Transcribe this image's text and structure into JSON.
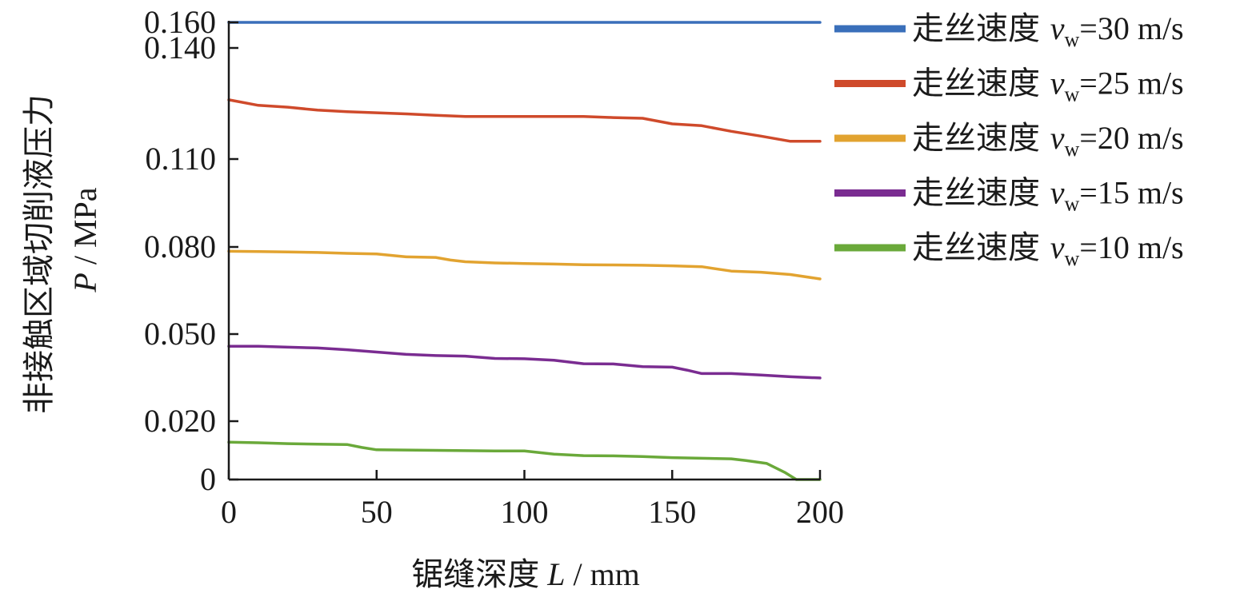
{
  "chart_data": {
    "type": "line",
    "xlabel": {
      "cn": "锯缝深度",
      "var": "L",
      "unit": " / mm"
    },
    "ylabel": {
      "cn": "非接触区域切削液压力",
      "var": "P",
      "unit": " / MPa"
    },
    "xlim": [
      0,
      200
    ],
    "ylim": [
      0,
      0.16
    ],
    "x_ticks": [
      0,
      50,
      100,
      150,
      200
    ],
    "x_tick_labels": [
      "0",
      "50",
      "100",
      "150",
      "200"
    ],
    "y_ticks": [
      0,
      0.02,
      0.05,
      0.08,
      0.11,
      0.14,
      0.16
    ],
    "y_tick_labels": [
      "0",
      "0.020",
      "0.050",
      "0.080",
      "0.110",
      "0.140",
      "0.160"
    ],
    "y_scale_note": "broken axis: 0.110 to 0.160 compressed",
    "legend_position": "right",
    "series": [
      {
        "name": "走丝速度 vw=30 m/s",
        "legend_prefix": "走丝速度 ",
        "legend_var": "v",
        "legend_sub": "w",
        "legend_value": "=30 m/s",
        "color": "#3a6fba",
        "x": [
          0,
          200
        ],
        "y": [
          0.16,
          0.16
        ]
      },
      {
        "name": "走丝速度 vw=25 m/s",
        "legend_prefix": "走丝速度 ",
        "legend_var": "v",
        "legend_sub": "w",
        "legend_value": "=25 m/s",
        "color": "#cf4a2b",
        "x": [
          0,
          10,
          20,
          30,
          40,
          50,
          60,
          70,
          80,
          90,
          100,
          110,
          120,
          130,
          140,
          150,
          160,
          170,
          180,
          190,
          200
        ],
        "y": [
          0.126,
          0.1245,
          0.124,
          0.1232,
          0.1228,
          0.1225,
          0.1222,
          0.1218,
          0.1215,
          0.1215,
          0.1215,
          0.1215,
          0.1215,
          0.1212,
          0.121,
          0.1195,
          0.119,
          0.1175,
          0.1162,
          0.1148,
          0.1148
        ]
      },
      {
        "name": "走丝速度 vw=20 m/s",
        "legend_prefix": "走丝速度 ",
        "legend_var": "v",
        "legend_sub": "w",
        "legend_value": "=20 m/s",
        "color": "#e2a330",
        "x": [
          0,
          10,
          20,
          30,
          40,
          50,
          60,
          70,
          75,
          80,
          90,
          100,
          110,
          120,
          130,
          140,
          150,
          160,
          170,
          180,
          190,
          200
        ],
        "y": [
          0.0785,
          0.0784,
          0.0783,
          0.0781,
          0.0778,
          0.0776,
          0.0766,
          0.0764,
          0.0755,
          0.0749,
          0.0745,
          0.0743,
          0.0741,
          0.0739,
          0.0738,
          0.0737,
          0.0735,
          0.0732,
          0.0717,
          0.0713,
          0.0705,
          0.069
        ]
      },
      {
        "name": "走丝速度 vw=15 m/s",
        "legend_prefix": "走丝速度 ",
        "legend_var": "v",
        "legend_sub": "w",
        "legend_value": "=15 m/s",
        "color": "#7a2c91",
        "x": [
          0,
          10,
          20,
          30,
          40,
          50,
          60,
          70,
          80,
          90,
          100,
          110,
          120,
          130,
          140,
          150,
          155,
          160,
          170,
          180,
          190,
          200
        ],
        "y": [
          0.0458,
          0.0458,
          0.0455,
          0.0452,
          0.0446,
          0.0438,
          0.043,
          0.0426,
          0.0424,
          0.0416,
          0.0415,
          0.041,
          0.0398,
          0.0397,
          0.0388,
          0.0386,
          0.0376,
          0.0364,
          0.0364,
          0.0359,
          0.0353,
          0.0349
        ]
      },
      {
        "name": "走丝速度 vw=10 m/s",
        "legend_prefix": "走丝速度 ",
        "legend_var": "v",
        "legend_sub": "w",
        "legend_value": "=10 m/s",
        "color": "#6aa93a",
        "x": [
          0,
          10,
          20,
          30,
          40,
          45,
          50,
          60,
          70,
          80,
          90,
          100,
          110,
          120,
          130,
          140,
          150,
          160,
          170,
          175,
          182,
          188,
          192,
          200
        ],
        "y": [
          0.0128,
          0.0126,
          0.0123,
          0.0121,
          0.012,
          0.011,
          0.0102,
          0.0101,
          0.01,
          0.0099,
          0.0098,
          0.0098,
          0.0087,
          0.0082,
          0.0081,
          0.0079,
          0.0075,
          0.0073,
          0.0071,
          0.0065,
          0.0055,
          0.0025,
          0.0,
          0.0
        ]
      }
    ]
  }
}
